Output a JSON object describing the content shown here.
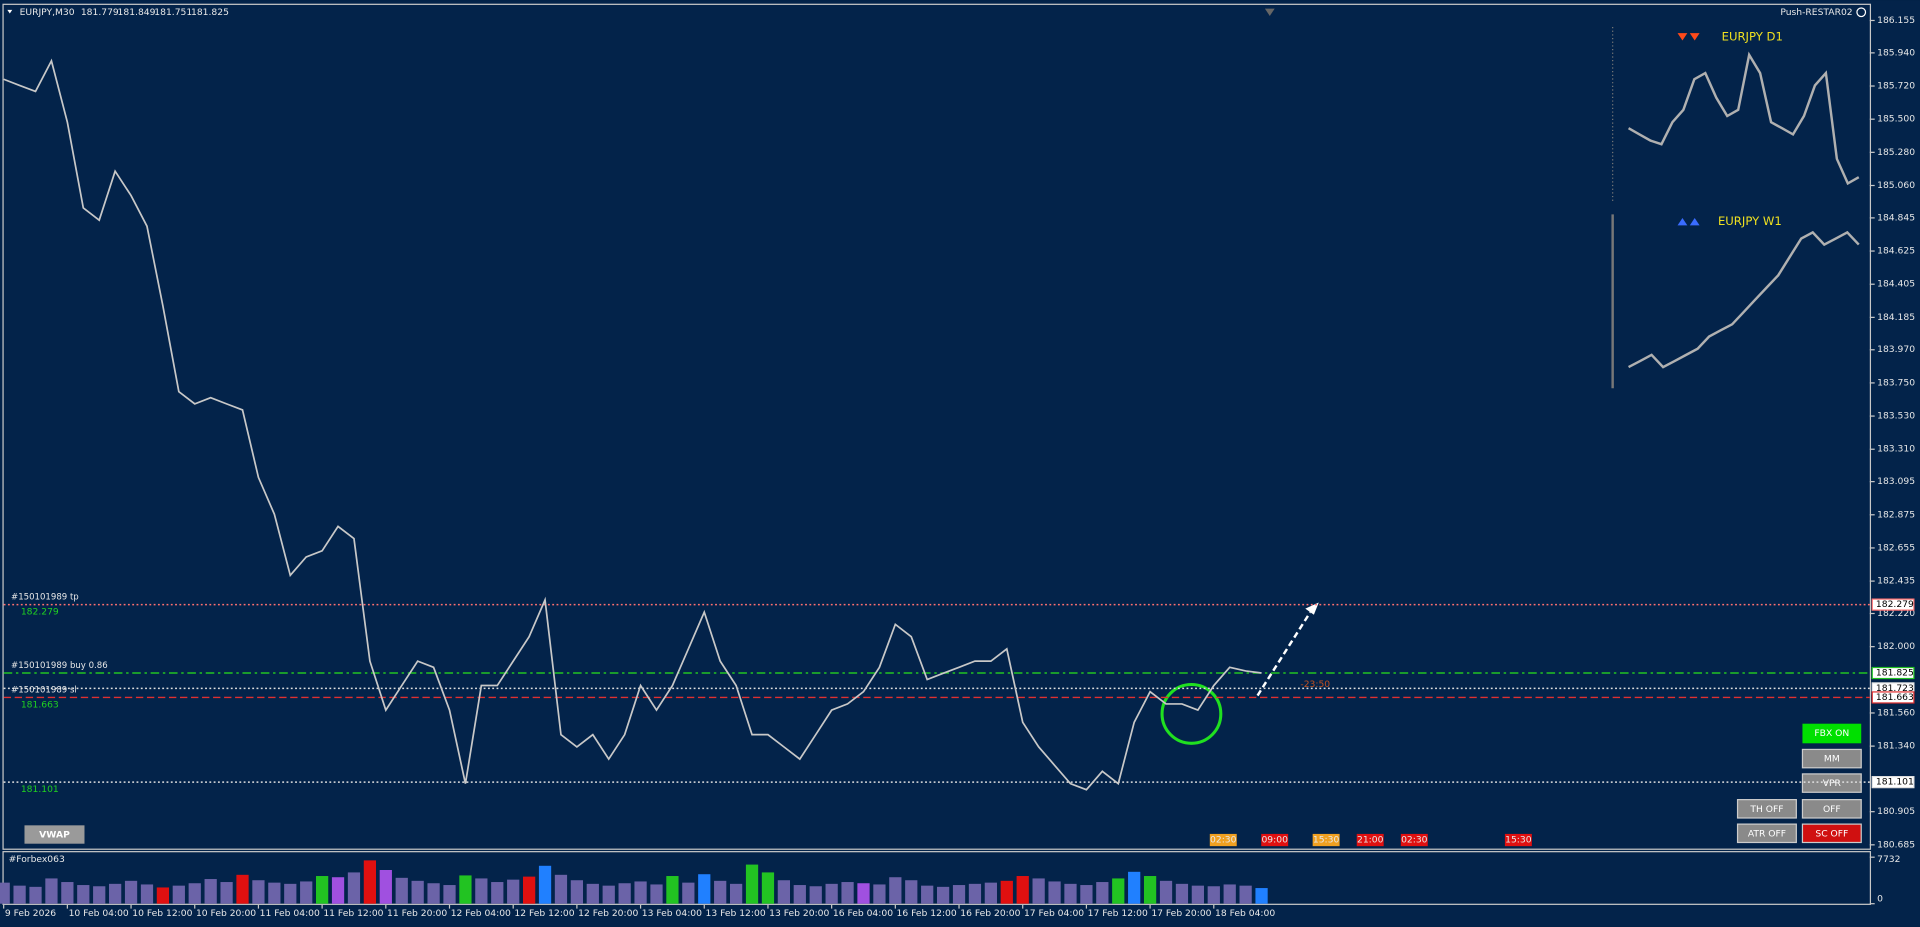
{
  "header": {
    "symbol": "EURJPY,M30",
    "ohlc": [
      181.779,
      181.849,
      181.751,
      181.825
    ],
    "profile": "Push-RESTAR02"
  },
  "chart_data": {
    "type": "line",
    "color": "#c8c8c8",
    "x": [
      0,
      2,
      4,
      6,
      8,
      10,
      12,
      14,
      16,
      18,
      20,
      22,
      24,
      26,
      28,
      30,
      32,
      34,
      36,
      38,
      40,
      42,
      44,
      46,
      48,
      50,
      52,
      54,
      56,
      58,
      60,
      62,
      64,
      66,
      68,
      70,
      72,
      74,
      76,
      78,
      80,
      82,
      84,
      86,
      88,
      90,
      92,
      94,
      96,
      98,
      100,
      102,
      104,
      106,
      108,
      110,
      112,
      114,
      116,
      118,
      120,
      122,
      124,
      126,
      128,
      130,
      132,
      134,
      136,
      138,
      140,
      142,
      144,
      146,
      148,
      150,
      152,
      154,
      156,
      158
    ],
    "values": [
      185.765,
      185.724,
      185.684,
      185.887,
      185.48,
      184.911,
      184.83,
      185.155,
      184.993,
      184.79,
      184.261,
      183.692,
      183.611,
      183.652,
      183.611,
      183.571,
      183.123,
      182.879,
      182.473,
      182.595,
      182.636,
      182.798,
      182.717,
      181.904,
      181.579,
      181.742,
      181.904,
      181.863,
      181.579,
      181.091,
      181.742,
      181.742,
      181.904,
      182.066,
      182.31,
      181.416,
      181.335,
      181.416,
      181.254,
      181.416,
      181.742,
      181.579,
      181.742,
      181.985,
      182.229,
      181.904,
      181.742,
      181.416,
      181.416,
      181.335,
      181.254,
      181.416,
      181.579,
      181.62,
      181.701,
      181.863,
      182.148,
      182.066,
      181.782,
      181.823,
      181.863,
      181.904,
      181.904,
      181.985,
      181.498,
      181.335,
      181.213,
      181.091,
      181.051,
      181.173,
      181.091,
      181.498,
      181.701,
      181.62,
      181.62,
      181.579,
      181.742,
      181.863,
      181.839,
      181.825
    ],
    "xlim": [
      0,
      234.4
    ],
    "xticks": [
      {
        "value": 0,
        "label": "9 Feb 2026"
      },
      {
        "value": 8,
        "label": "10 Feb 04:00"
      },
      {
        "value": 16,
        "label": "10 Feb 12:00"
      },
      {
        "value": 24,
        "label": "10 Feb 20:00"
      },
      {
        "value": 32,
        "label": "11 Feb 04:00"
      },
      {
        "value": 40,
        "label": "11 Feb 12:00"
      },
      {
        "value": 48,
        "label": "11 Feb 20:00"
      },
      {
        "value": 56,
        "label": "12 Feb 04:00"
      },
      {
        "value": 64,
        "label": "12 Feb 12:00"
      },
      {
        "value": 72,
        "label": "12 Feb 20:00"
      },
      {
        "value": 80,
        "label": "13 Feb 04:00"
      },
      {
        "value": 88,
        "label": "13 Feb 12:00"
      },
      {
        "value": 96,
        "label": "13 Feb 20:00"
      },
      {
        "value": 104,
        "label": "16 Feb 04:00"
      },
      {
        "value": 112,
        "label": "16 Feb 12:00"
      },
      {
        "value": 120,
        "label": "16 Feb 20:00"
      },
      {
        "value": 128,
        "label": "17 Feb 04:00"
      },
      {
        "value": 136,
        "label": "17 Feb 12:00"
      },
      {
        "value": 144,
        "label": "17 Feb 20:00"
      },
      {
        "value": 152,
        "label": "18 Feb 04:00"
      }
    ],
    "ylim": [
      180.66,
      186.25
    ],
    "yticks": [
      186.155,
      {
        "value": 185.94,
        "label": "185.940"
      },
      {
        "value": 185.72,
        "label": "185.720"
      },
      {
        "value": 185.5,
        "label": "185.500"
      },
      {
        "value": 185.28,
        "label": "185.280"
      },
      {
        "value": 185.06,
        "label": "185.060"
      },
      184.845,
      184.625,
      184.405,
      184.185,
      {
        "value": 183.97,
        "label": "183.970"
      },
      {
        "value": 183.75,
        "label": "183.750"
      },
      {
        "value": 183.53,
        "label": "183.530"
      },
      {
        "value": 183.31,
        "label": "183.310"
      },
      183.095,
      182.875,
      182.655,
      182.435,
      {
        "value": 182.22,
        "label": "182.220"
      },
      {
        "value": 182.0,
        "label": "182.000"
      },
      {
        "value": 181.56,
        "label": "181.560"
      },
      {
        "value": 181.34,
        "label": "181.340"
      },
      180.905,
      180.685
    ],
    "levels": [
      {
        "name": "#150101989 tp",
        "value": 182.279,
        "color": "#ff7070",
        "style": "dotted",
        "left_label": true
      },
      {
        "name": "#150101989 buy 0.86",
        "value": 181.825,
        "color": "#22c322",
        "style": "dashdot",
        "left_label": false
      },
      {
        "value": 181.723,
        "color": "#e0e0e0",
        "style": "dotted",
        "left_label": false
      },
      {
        "name": "#150101989 sl",
        "value": 181.663,
        "color": "#e03030",
        "style": "dashed",
        "left_label": true
      },
      {
        "value": 181.101,
        "color": "#e0e0e0",
        "style": "dotted",
        "left_label": true
      }
    ],
    "minis": [
      {
        "title": "EURJPY D1",
        "color": "#b0b0b0",
        "values": [
          185.44,
          185.399,
          185.358,
          185.334,
          185.48,
          185.562,
          185.765,
          185.806,
          185.643,
          185.521,
          185.562,
          185.927,
          185.806,
          185.48,
          185.44,
          185.399,
          185.521,
          185.724,
          185.806,
          185.237,
          185.074,
          185.115
        ]
      },
      {
        "title": "EURJPY W1",
        "color": "#b0b0b0",
        "values": [
          183.855,
          183.895,
          183.936,
          183.855,
          183.895,
          183.936,
          183.977,
          184.058,
          184.099,
          184.139,
          184.22,
          184.302,
          184.383,
          184.464,
          184.586,
          184.708,
          184.749,
          184.668,
          184.708,
          184.749,
          184.668
        ]
      }
    ],
    "volume": {
      "name": "#Forbex063",
      "ylim": [
        0,
        7732
      ],
      "yticks": [
        0,
        7732
      ],
      "values": [
        3500,
        3000,
        2800,
        4200,
        3600,
        3100,
        2900,
        3300,
        3800,
        3200,
        2700,
        3000,
        3400,
        4100,
        3600,
        4800,
        3900,
        3500,
        3300,
        3700,
        4600,
        4400,
        5200,
        7200,
        5600,
        4300,
        3800,
        3400,
        3100,
        4700,
        4200,
        3600,
        4000,
        4500,
        6300,
        4800,
        3900,
        3300,
        3000,
        3400,
        3700,
        3200,
        4600,
        3500,
        4900,
        3800,
        3300,
        6500,
        5200,
        3900,
        3100,
        2900,
        3300,
        3600,
        3400,
        3200,
        4400,
        3900,
        3000,
        2800,
        3100,
        3300,
        3500,
        3800,
        4600,
        4200,
        3700,
        3300,
        3100,
        3600,
        4200,
        5300,
        4600,
        3800,
        3300,
        3000,
        2900,
        3200,
        3000,
        2600
      ],
      "colors": [
        "#6b63a8",
        "#6b63a8",
        "#6b63a8",
        "#6b63a8",
        "#6b63a8",
        "#6b63a8",
        "#6b63a8",
        "#6b63a8",
        "#6b63a8",
        "#6b63a8",
        "#e01010",
        "#6b63a8",
        "#6b63a8",
        "#6b63a8",
        "#6b63a8",
        "#e01010",
        "#6b63a8",
        "#6b63a8",
        "#6b63a8",
        "#6b63a8",
        "#22c322",
        "#a050e0",
        "#6b63a8",
        "#e01010",
        "#a050e0",
        "#6b63a8",
        "#6b63a8",
        "#6b63a8",
        "#6b63a8",
        "#22c322",
        "#6b63a8",
        "#6b63a8",
        "#6b63a8",
        "#e01010",
        "#2080ff",
        "#6b63a8",
        "#6b63a8",
        "#6b63a8",
        "#6b63a8",
        "#6b63a8",
        "#6b63a8",
        "#6b63a8",
        "#22c322",
        "#6b63a8",
        "#2080ff",
        "#6b63a8",
        "#6b63a8",
        "#22c322",
        "#22c322",
        "#6b63a8",
        "#6b63a8",
        "#6b63a8",
        "#6b63a8",
        "#6b63a8",
        "#a050e0",
        "#6b63a8",
        "#6b63a8",
        "#6b63a8",
        "#6b63a8",
        "#6b63a8",
        "#6b63a8",
        "#6b63a8",
        "#6b63a8",
        "#e01010",
        "#e01010",
        "#6b63a8",
        "#6b63a8",
        "#6b63a8",
        "#6b63a8",
        "#6b63a8",
        "#22c322",
        "#2080ff",
        "#22c322",
        "#6b63a8",
        "#6b63a8",
        "#6b63a8",
        "#6b63a8",
        "#6b63a8",
        "#6b63a8",
        "#2080ff"
      ]
    }
  },
  "annotation": "-23:50",
  "time_markers": [
    "02:30",
    "09:00",
    "15:30",
    "21:00",
    "02:30",
    "15:30"
  ],
  "buttons": {
    "vwap": "VWAP",
    "fbx": "FBX ON",
    "mm": "MM",
    "vpr": "VPR",
    "th": "TH OFF",
    "off": "OFF",
    "atr": "ATR OFF",
    "sc": "SC OFF"
  }
}
